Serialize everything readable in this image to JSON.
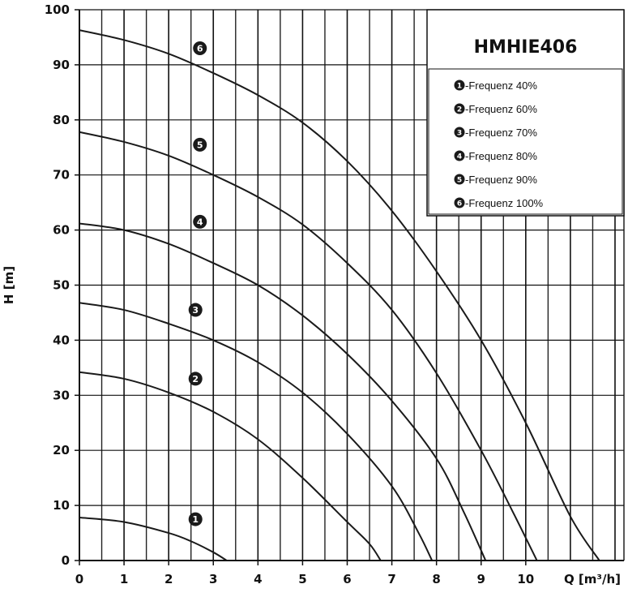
{
  "chart_data": {
    "type": "line",
    "title": "HMHIE406",
    "xlabel": "Q [m³/h]",
    "ylabel": "H [m]",
    "xlim": [
      0,
      12.2
    ],
    "ylim": [
      0,
      100
    ],
    "x_ticks": [
      "0",
      "1",
      "2",
      "3",
      "4",
      "5",
      "6",
      "7",
      "8",
      "9",
      "10"
    ],
    "y_ticks": [
      "0",
      "10",
      "20",
      "30",
      "40",
      "50",
      "60",
      "70",
      "80",
      "90",
      "100"
    ],
    "grid": true,
    "legend_position": "top-right",
    "line_color": "#1a1a1a",
    "series": [
      {
        "name": "-Frequenz 40%",
        "id": "1",
        "x": [
          0,
          1,
          2,
          2.5,
          3,
          3.3
        ],
        "y": [
          7.8,
          7,
          5,
          3.5,
          1.5,
          0
        ]
      },
      {
        "name": "-Frequenz 60%",
        "id": "2",
        "x": [
          0,
          1,
          2,
          3,
          4,
          5,
          6,
          6.5,
          6.75
        ],
        "y": [
          34.2,
          33,
          30.5,
          27,
          22,
          15,
          7,
          3,
          0
        ]
      },
      {
        "name": "-Frequenz 70%",
        "id": "3",
        "x": [
          0,
          1,
          2,
          3,
          4,
          5,
          6,
          7,
          7.6,
          7.9
        ],
        "y": [
          46.8,
          45.5,
          43,
          40,
          36,
          30.5,
          23,
          13.5,
          5,
          0
        ]
      },
      {
        "name": "-Frequenz 80%",
        "id": "4",
        "x": [
          0,
          1,
          2,
          3,
          4,
          5,
          6,
          7,
          8,
          8.6,
          9.1
        ],
        "y": [
          61.2,
          60,
          57.5,
          54,
          50,
          44.5,
          37.5,
          29,
          18.5,
          9,
          0
        ]
      },
      {
        "name": "-Frequenz 90%",
        "id": "5",
        "x": [
          0,
          1,
          2,
          3,
          4,
          5,
          6,
          7,
          8,
          9,
          9.7,
          10.25
        ],
        "y": [
          77.8,
          76,
          73.5,
          70,
          66,
          61,
          54,
          45.5,
          34,
          20,
          9,
          0
        ]
      },
      {
        "name": "-Frequenz 100%",
        "id": "6",
        "x": [
          0,
          1,
          2,
          3,
          4,
          5,
          6,
          7,
          8,
          9,
          10,
          11,
          11.65
        ],
        "y": [
          96.3,
          94.5,
          92,
          88.5,
          84.5,
          79.5,
          72.5,
          63.5,
          52.5,
          40,
          25,
          8,
          0
        ]
      }
    ],
    "markers": [
      {
        "id": "1",
        "x": 2.6,
        "y": 7.5
      },
      {
        "id": "2",
        "x": 2.6,
        "y": 33
      },
      {
        "id": "3",
        "x": 2.6,
        "y": 45.5
      },
      {
        "id": "4",
        "x": 2.7,
        "y": 61.5
      },
      {
        "id": "5",
        "x": 2.7,
        "y": 75.5
      },
      {
        "id": "6",
        "x": 2.7,
        "y": 93
      }
    ]
  }
}
